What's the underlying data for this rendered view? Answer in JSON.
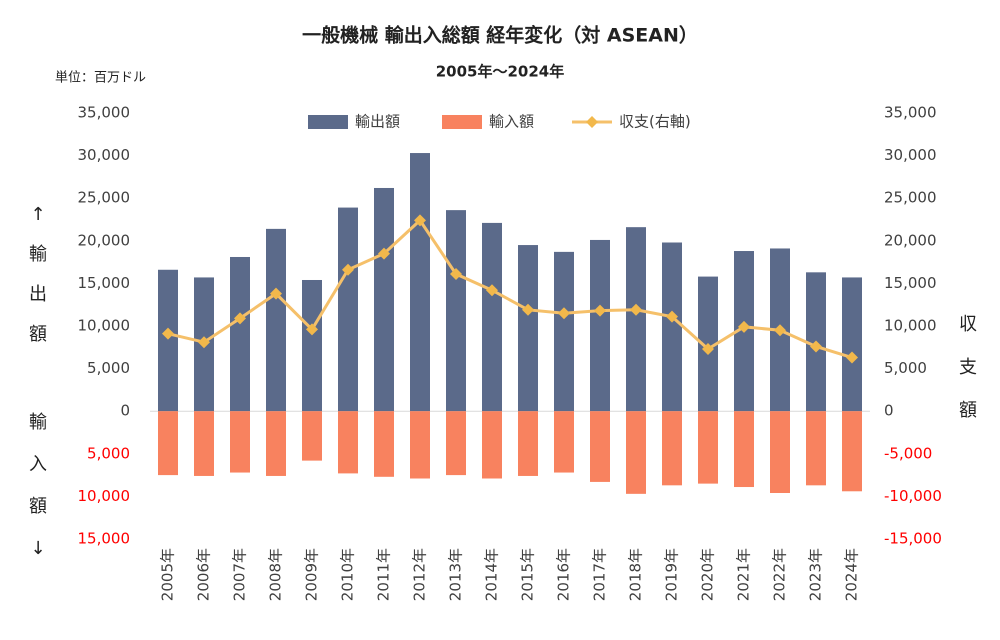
{
  "chart_data": {
    "type": "bar",
    "title": "一般機械 輸出入総額 経年変化（対 ASEAN）",
    "subtitle": "2005年～2024年",
    "unit_label": "単位：百万ドル",
    "y_label_top": "↑輸出額",
    "y_label_bottom": "輸入額↓",
    "y2_label": "収支額",
    "legend": "top",
    "grid": false,
    "negative_tick_color": "#ff0000",
    "categories": [
      "2005年",
      "2006年",
      "2007年",
      "2008年",
      "2009年",
      "2010年",
      "2011年",
      "2012年",
      "2013年",
      "2014年",
      "2015年",
      "2016年",
      "2017年",
      "2018年",
      "2019年",
      "2020年",
      "2021年",
      "2022年",
      "2023年",
      "2024年"
    ],
    "series": [
      {
        "name": "輸出額",
        "type": "bar",
        "color": "#5b6a8a",
        "values": [
          16600,
          15700,
          18100,
          21400,
          15400,
          23900,
          26200,
          30300,
          23600,
          22100,
          19500,
          18700,
          20100,
          21600,
          19800,
          15800,
          18800,
          19100,
          16300,
          15700
        ]
      },
      {
        "name": "輸入額",
        "type": "bar",
        "color": "#f8825f",
        "values": [
          -7500,
          -7600,
          -7200,
          -7600,
          -5800,
          -7300,
          -7700,
          -7900,
          -7500,
          -7900,
          -7600,
          -7200,
          -8300,
          -9700,
          -8700,
          -8500,
          -8900,
          -9600,
          -8700,
          -9400
        ]
      },
      {
        "name": "収支(右軸)",
        "type": "line",
        "axis": "y2",
        "color": "#f5c06a",
        "values": [
          9100,
          8100,
          10900,
          13800,
          9600,
          16600,
          18500,
          22400,
          16100,
          14200,
          11900,
          11500,
          11800,
          11900,
          11100,
          7300,
          9900,
          9500,
          7600,
          6300
        ]
      }
    ],
    "ylim": [
      -15000,
      35000
    ],
    "yticks": [
      {
        "value": 35000,
        "label": "35,000"
      },
      {
        "value": 30000,
        "label": "30,000"
      },
      {
        "value": 25000,
        "label": "25,000"
      },
      {
        "value": 20000,
        "label": "20,000"
      },
      {
        "value": 15000,
        "label": "15,000"
      },
      {
        "value": 10000,
        "label": "10,000"
      },
      {
        "value": 5000,
        "label": "5,000"
      },
      0,
      {
        "value": -5000,
        "label": "5,000"
      },
      {
        "value": -10000,
        "label": "10,000"
      },
      {
        "value": -15000,
        "label": "15,000"
      }
    ],
    "y2lim": [
      -15000,
      35000
    ],
    "y2ticks": [
      {
        "value": 35000,
        "label": "35,000"
      },
      {
        "value": 30000,
        "label": "30,000"
      },
      {
        "value": 25000,
        "label": "25,000"
      },
      {
        "value": 20000,
        "label": "20,000"
      },
      {
        "value": 15000,
        "label": "15,000"
      },
      {
        "value": 10000,
        "label": "10,000"
      },
      {
        "value": 5000,
        "label": "5,000"
      },
      0,
      {
        "value": -5000,
        "label": "-5,000"
      },
      {
        "value": -10000,
        "label": "-10,000"
      },
      {
        "value": -15000,
        "label": "-15,000"
      }
    ]
  }
}
